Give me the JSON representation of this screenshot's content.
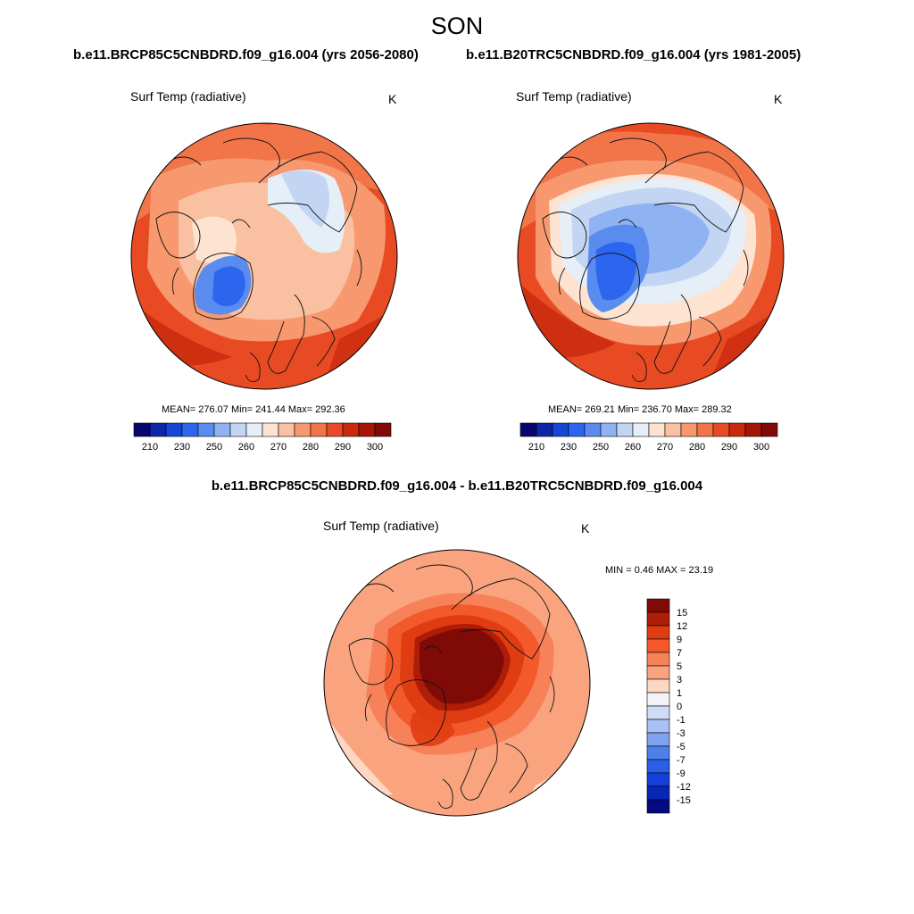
{
  "season_title": "SON",
  "panels": {
    "left": {
      "header": "b.e11.BRCP85C5CNBDRD.f09_g16.004 (yrs 2056-2080)",
      "variable": "Surf Temp (radiative)",
      "units": "K",
      "stats": "MEAN= 276.07  Min= 241.44  Max= 292.36"
    },
    "right": {
      "header": "b.e11.B20TRC5CNBDRD.f09_g16.004 (yrs 1981-2005)",
      "variable": "Surf Temp (radiative)",
      "units": "K",
      "stats": "MEAN= 269.21  Min= 236.70  Max= 289.32"
    },
    "diff": {
      "header": "b.e11.BRCP85C5CNBDRD.f09_g16.004 - b.e11.B20TRC5CNBDRD.f09_g16.004",
      "variable": "Surf Temp (radiative)",
      "units": "K",
      "stats": "MIN =   0.46 MAX =  23.19"
    }
  },
  "abs_colorbar": {
    "colors": [
      "#08066e",
      "#0d26a8",
      "#1646d6",
      "#2d66ee",
      "#5a8cf0",
      "#8fb3f2",
      "#c2d6f4",
      "#e6eef8",
      "#fde3d0",
      "#fac0a2",
      "#f7986f",
      "#f2754a",
      "#e84b23",
      "#c92a0e",
      "#a51608",
      "#7f0a06"
    ],
    "tick_labels": [
      "210",
      "230",
      "250",
      "260",
      "270",
      "280",
      "290",
      "300"
    ]
  },
  "diff_colorbar": {
    "colors": [
      "#7f0a06",
      "#ad1d07",
      "#e03c12",
      "#f25a2c",
      "#f7825a",
      "#faa47f",
      "#fdd7c2",
      "#f3f3f7",
      "#cfdcf6",
      "#a9c1f4",
      "#7ea3f0",
      "#4e80ec",
      "#2a5ee6",
      "#1340d8",
      "#0a26b4",
      "#050a82"
    ],
    "tick_labels": [
      "15",
      "12",
      "9",
      "7",
      "5",
      "3",
      "1",
      "0",
      "-1",
      "-3",
      "-5",
      "-7",
      "-9",
      "-12",
      "-15"
    ]
  }
}
